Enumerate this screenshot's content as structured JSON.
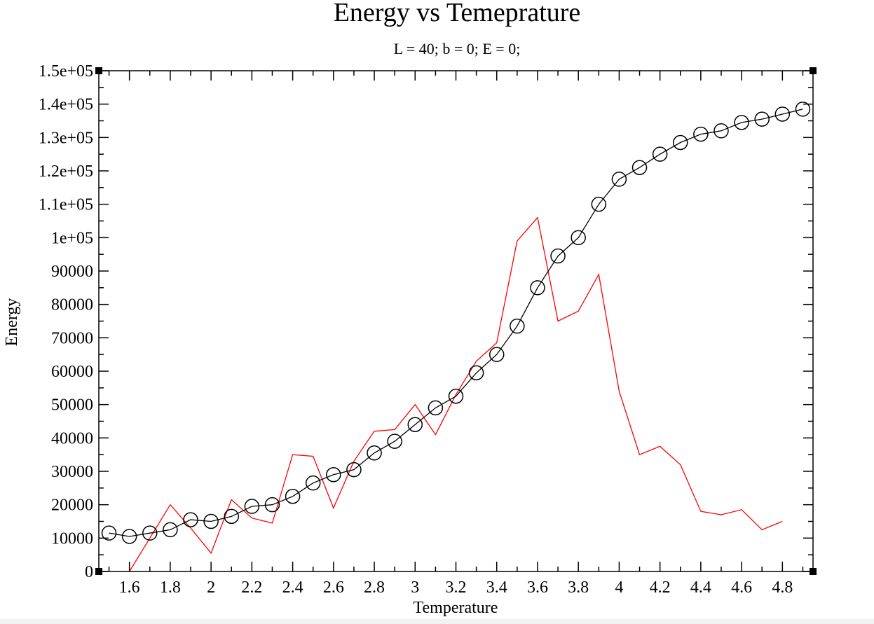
{
  "chart_data": {
    "type": "line",
    "title": "Energy vs Temeprature",
    "subtitle": "L = 40; b = 0; E = 0;",
    "xlabel": "Temperature",
    "ylabel": "Energy",
    "xlim": [
      1.45,
      4.95
    ],
    "ylim": [
      0,
      150000
    ],
    "x_ticks": [
      1.6,
      1.8,
      2,
      2.2,
      2.4,
      2.6,
      2.8,
      3,
      3.2,
      3.4,
      3.6,
      3.8,
      4,
      4.2,
      4.4,
      4.6,
      4.8
    ],
    "x_tick_labels": [
      "1.6",
      "1.8",
      "2",
      "2.2",
      "2.4",
      "2.6",
      "2.8",
      "3",
      "3.2",
      "3.4",
      "3.6",
      "3.8",
      "4",
      "4.2",
      "4.4",
      "4.6",
      "4.8"
    ],
    "y_ticks": [
      0,
      10000,
      20000,
      30000,
      40000,
      50000,
      60000,
      70000,
      80000,
      90000,
      100000,
      110000,
      120000,
      130000,
      140000,
      150000
    ],
    "y_tick_labels": [
      "0",
      "10000",
      "20000",
      "30000",
      "40000",
      "50000",
      "60000",
      "70000",
      "80000",
      "90000",
      "1e+05",
      "1.1e+05",
      "1.2e+05",
      "1.3e+05",
      "1.4e+05",
      "1.5e+05"
    ],
    "grid": false,
    "series": [
      {
        "color": "#ff0000",
        "marker": "none",
        "x": [
          1.6,
          1.7,
          1.8,
          1.9,
          2.0,
          2.1,
          2.2,
          2.3,
          2.4,
          2.5,
          2.6,
          2.7,
          2.8,
          2.9,
          3.0,
          3.1,
          3.2,
          3.3,
          3.4,
          3.5,
          3.6,
          3.7,
          3.8,
          3.9,
          4.0,
          4.1,
          4.2,
          4.3,
          4.4,
          4.5,
          4.6,
          4.7,
          4.8
        ],
        "values": [
          0,
          10000,
          20000,
          13000,
          5500,
          21500,
          16000,
          14500,
          35000,
          34500,
          19000,
          33000,
          42000,
          42500,
          50000,
          41000,
          53000,
          63000,
          68500,
          99000,
          106000,
          75000,
          78000,
          89000,
          54000,
          35000,
          37500,
          32000,
          18000,
          17000,
          18500,
          12500,
          15000
        ]
      },
      {
        "color": "#000000",
        "marker": "circle",
        "x": [
          1.5,
          1.6,
          1.7,
          1.8,
          1.9,
          2.0,
          2.1,
          2.2,
          2.3,
          2.4,
          2.5,
          2.6,
          2.7,
          2.8,
          2.9,
          3.0,
          3.1,
          3.2,
          3.3,
          3.4,
          3.5,
          3.6,
          3.7,
          3.8,
          3.9,
          4.0,
          4.1,
          4.2,
          4.3,
          4.4,
          4.5,
          4.6,
          4.7,
          4.8,
          4.9
        ],
        "values": [
          11500,
          10500,
          11500,
          12500,
          15500,
          15000,
          16500,
          19500,
          20000,
          22500,
          26500,
          29000,
          30500,
          35500,
          39000,
          44000,
          49000,
          52500,
          59500,
          65000,
          73500,
          85000,
          94500,
          100000,
          110000,
          117500,
          121000,
          125000,
          128500,
          131000,
          132000,
          134500,
          135500,
          137000,
          138500
        ]
      }
    ]
  }
}
